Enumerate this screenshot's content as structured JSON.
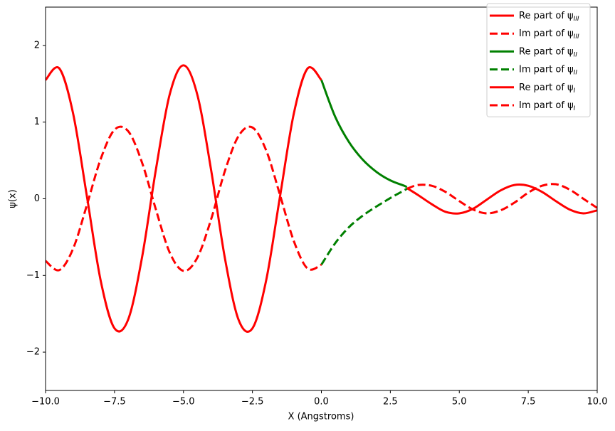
{
  "chart_data": {
    "type": "line",
    "xlabel": "X (Angstroms)",
    "ylabel": "ψ(x)",
    "xlim": [
      -10,
      10
    ],
    "ylim": [
      -2.5,
      2.5
    ],
    "xticks": [
      {
        "value": -10,
        "label": "−10.0"
      },
      {
        "value": -7.5,
        "label": "−7.5"
      },
      {
        "value": -5,
        "label": "−5.0"
      },
      {
        "value": -2.5,
        "label": "−2.5"
      },
      {
        "value": 0,
        "label": "0.0"
      },
      2.5,
      {
        "value": 5,
        "label": "5.0"
      },
      7.5,
      {
        "value": 10,
        "label": "10.0"
      }
    ],
    "yticks": [
      {
        "value": -2,
        "label": "−2"
      },
      {
        "value": -1,
        "label": "−1"
      },
      0,
      1,
      2
    ],
    "legend": "upper right",
    "series": [
      {
        "name": "Re part of ψIII",
        "color": "#ff0000",
        "dash": "solid",
        "x": [
          3.1,
          3.5,
          4,
          4.5,
          5,
          5.5,
          6,
          6.5,
          7,
          7.5,
          8,
          8.5,
          9,
          9.5,
          10
        ],
        "values": [
          0.14,
          0.05,
          -0.07,
          -0.17,
          -0.19,
          -0.13,
          -0.01,
          0.11,
          0.18,
          0.17,
          0.09,
          -0.03,
          -0.14,
          -0.19,
          -0.15
        ]
      },
      {
        "name": "Im part of ψIII",
        "color": "#ff0000",
        "dash": "dashed",
        "x": [
          3.1,
          3.5,
          4,
          4.5,
          5,
          5.5,
          6,
          6.5,
          7,
          7.5,
          8,
          8.5,
          9,
          9.5,
          10
        ],
        "values": [
          0.13,
          0.18,
          0.17,
          0.09,
          -0.03,
          -0.14,
          -0.19,
          -0.15,
          -0.05,
          0.08,
          0.17,
          0.19,
          0.12,
          0.0,
          -0.12
        ]
      },
      {
        "name": "Re part of ψII",
        "color": "#008000",
        "dash": "solid",
        "x": [
          0,
          0.5,
          1,
          1.5,
          2,
          2.5,
          3,
          3.1
        ],
        "values": [
          1.55,
          1.07,
          0.74,
          0.51,
          0.35,
          0.24,
          0.17,
          0.15
        ]
      },
      {
        "name": "Im part of ψII",
        "color": "#008000",
        "dash": "dashed",
        "x": [
          0,
          0.5,
          1,
          1.5,
          2,
          2.5,
          3,
          3.1
        ],
        "values": [
          -0.86,
          -0.58,
          -0.37,
          -0.22,
          -0.1,
          0.01,
          0.11,
          0.13
        ]
      },
      {
        "name": "Re part of ψI",
        "color": "#ff0000",
        "dash": "solid",
        "x": [
          -10,
          -9.5,
          -9,
          -8.5,
          -8,
          -7.5,
          -7,
          -6.5,
          -6,
          -5.5,
          -5,
          -4.5,
          -4,
          -3.5,
          -3,
          -2.5,
          -2,
          -1.5,
          -1,
          -0.5,
          0
        ],
        "values": [
          1.55,
          1.7,
          1.11,
          0.03,
          -1.07,
          -1.69,
          -1.57,
          -0.76,
          0.38,
          1.36,
          1.74,
          1.36,
          0.38,
          -0.77,
          -1.58,
          -1.69,
          -1.06,
          0.03,
          1.11,
          1.7,
          1.55
        ]
      },
      {
        "name": "Im part of ψI",
        "color": "#ff0000",
        "dash": "dashed",
        "x": [
          -10,
          -9.5,
          -9,
          -8.5,
          -8,
          -7.5,
          -7,
          -6.5,
          -6,
          -5.5,
          -5,
          -4.5,
          -4,
          -3.5,
          -3,
          -2.5,
          -2,
          -1.5,
          -1,
          -0.5,
          0
        ],
        "values": [
          -0.81,
          -0.93,
          -0.65,
          -0.08,
          0.52,
          0.9,
          0.88,
          0.47,
          -0.14,
          -0.7,
          -0.94,
          -0.77,
          -0.27,
          0.36,
          0.82,
          0.93,
          0.63,
          0.05,
          -0.55,
          -0.91,
          -0.86
        ]
      }
    ]
  }
}
